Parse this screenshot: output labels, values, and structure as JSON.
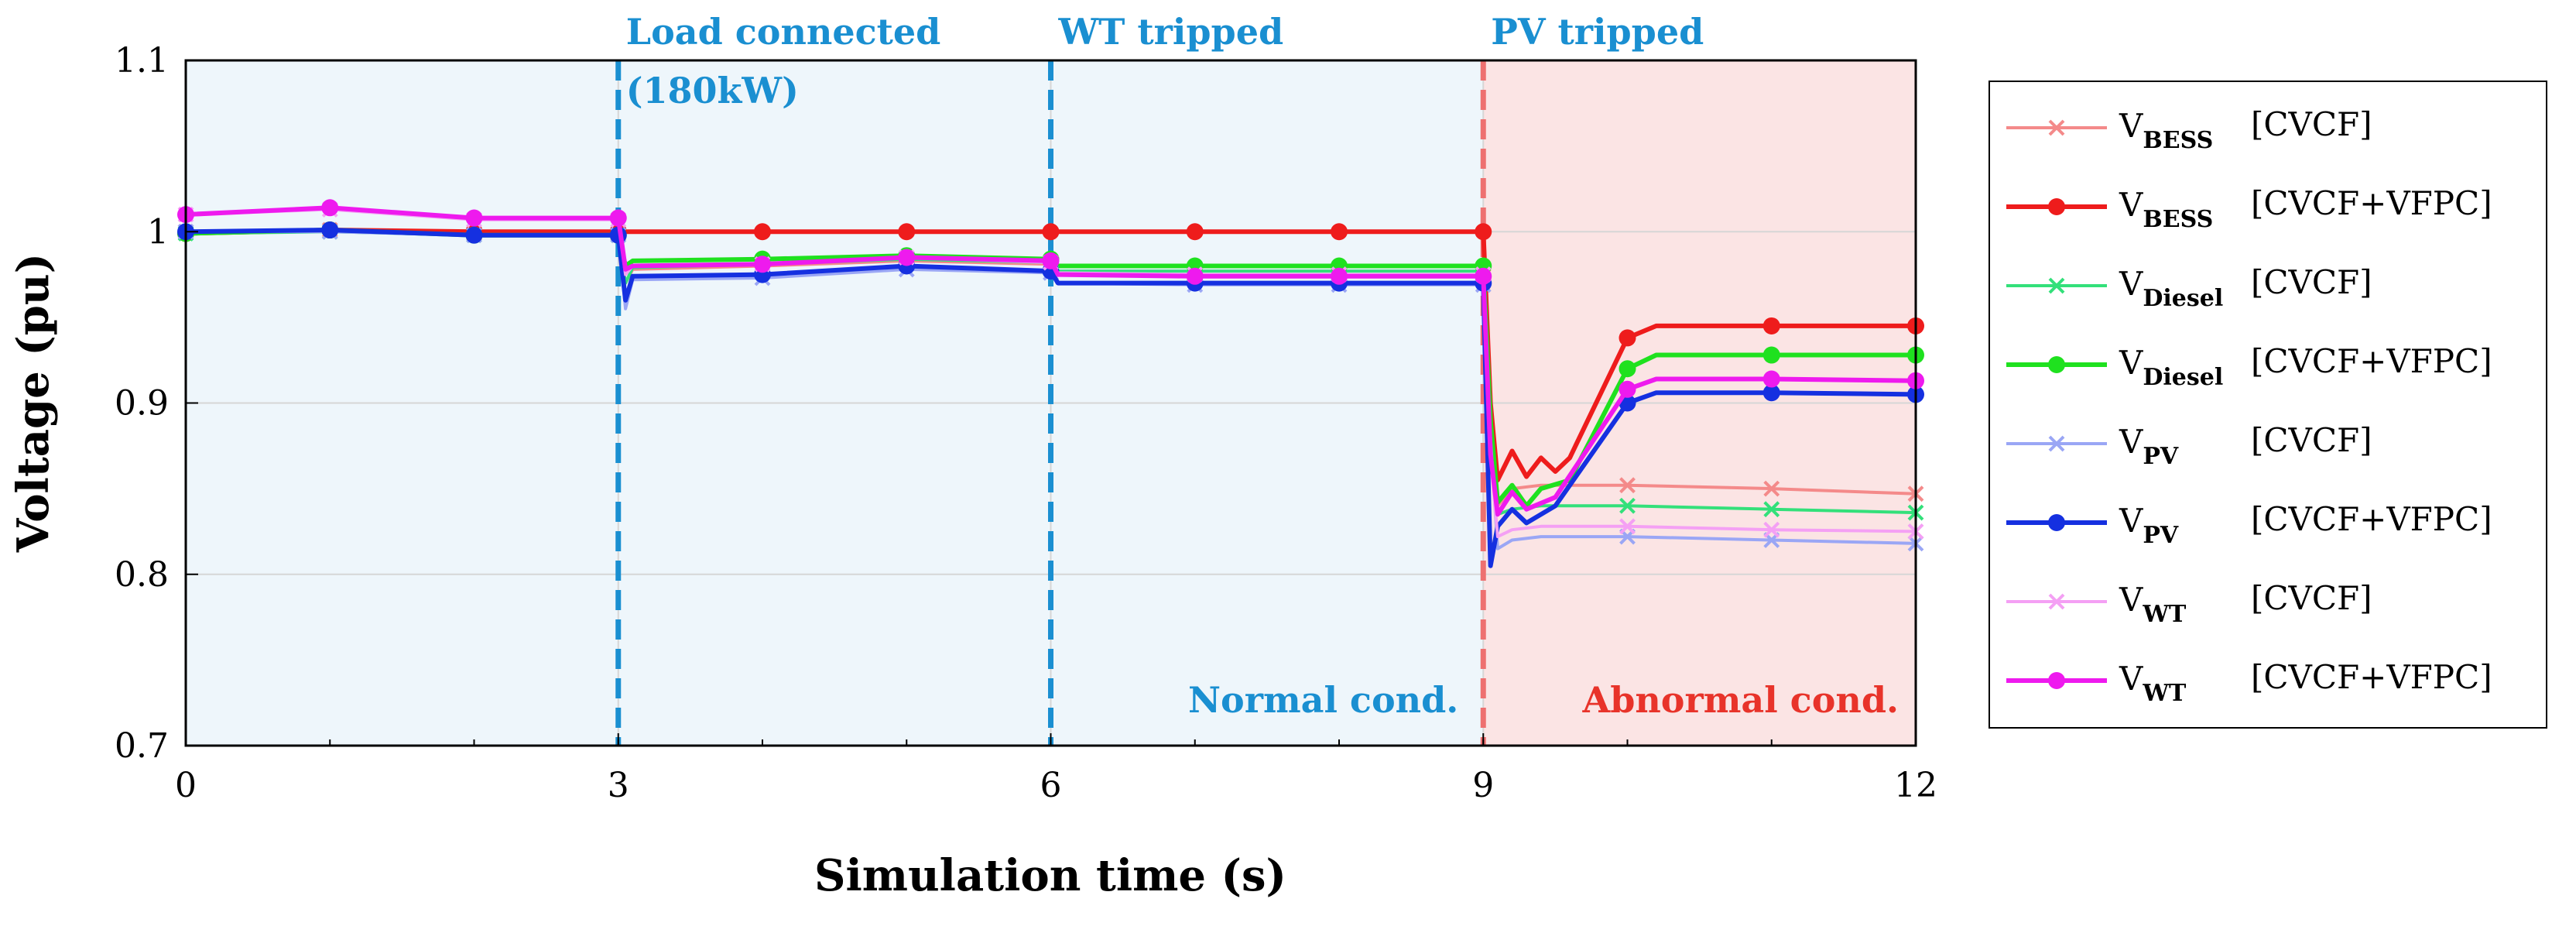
{
  "chart_data": {
    "type": "line",
    "xlabel": "Simulation time (s)",
    "ylabel": "Voltage (pu)",
    "xlim": [
      0,
      12
    ],
    "ylim": [
      0.7,
      1.1
    ],
    "xticks": [
      "0",
      "3",
      "6",
      "9",
      "12"
    ],
    "yticks": [
      "0.7",
      "0.8",
      "0.9",
      "1",
      "1.1"
    ],
    "grid": true,
    "legend_position": "right-outside",
    "regions": [
      {
        "name": "normal",
        "x_start": 0,
        "x_end": 9,
        "color": "#eef6fb",
        "label": "Normal cond.",
        "label_color": "#1a8fd1"
      },
      {
        "name": "abnormal",
        "x_start": 9,
        "x_end": 12,
        "color": "#fbe4e4",
        "label": "Abnormal cond.",
        "label_color": "#e8332a"
      }
    ],
    "events": [
      {
        "x": 3,
        "label": "Load connected",
        "label2": "(180kW)",
        "color": "#1a8fd1"
      },
      {
        "x": 6,
        "label": "WT tripped",
        "label2": "",
        "color": "#1a8fd1"
      },
      {
        "x": 9,
        "label": "PV tripped",
        "label2": "",
        "color": "#ee7070"
      }
    ],
    "series": [
      {
        "name": "V_BESS [CVCF]",
        "main": "V",
        "sub": "BESS",
        "tag": "[CVCF]",
        "color": "#f48a8a",
        "marker": "x",
        "width": 4,
        "points": [
          [
            0,
            1.0
          ],
          [
            1,
            1.001
          ],
          [
            2,
            0.999
          ],
          [
            3,
            0.999
          ],
          [
            3.05,
            0.97
          ],
          [
            3.1,
            0.978
          ],
          [
            4,
            0.98
          ],
          [
            5,
            0.983
          ],
          [
            6,
            0.981
          ],
          [
            6.05,
            0.975
          ],
          [
            7,
            0.974
          ],
          [
            8,
            0.974
          ],
          [
            9,
            0.974
          ],
          [
            9.05,
            0.9
          ],
          [
            9.1,
            0.84
          ],
          [
            9.2,
            0.85
          ],
          [
            9.4,
            0.852
          ],
          [
            10,
            0.852
          ],
          [
            11,
            0.85
          ],
          [
            12,
            0.847
          ]
        ]
      },
      {
        "name": "V_BESS [CVCF+VFPC]",
        "main": "V",
        "sub": "BESS",
        "tag": "[CVCF+VFPC]",
        "color": "#ee1c1c",
        "marker": "o",
        "width": 6,
        "points": [
          [
            0,
            0.999
          ],
          [
            1,
            1.001
          ],
          [
            2,
            1.0
          ],
          [
            3,
            1.0
          ],
          [
            3.05,
            1.0
          ],
          [
            4,
            1.0
          ],
          [
            5,
            1.0
          ],
          [
            6,
            1.0
          ],
          [
            7,
            1.0
          ],
          [
            8,
            1.0
          ],
          [
            9,
            1.0
          ],
          [
            9.05,
            0.9
          ],
          [
            9.1,
            0.855
          ],
          [
            9.2,
            0.872
          ],
          [
            9.3,
            0.857
          ],
          [
            9.4,
            0.868
          ],
          [
            9.5,
            0.86
          ],
          [
            9.6,
            0.868
          ],
          [
            10,
            0.938
          ],
          [
            10.2,
            0.945
          ],
          [
            11,
            0.945
          ],
          [
            12,
            0.945
          ]
        ]
      },
      {
        "name": "V_Diesel [CVCF]",
        "main": "V",
        "sub": "Diesel",
        "tag": "[CVCF]",
        "color": "#33e07a",
        "marker": "x",
        "width": 4,
        "points": [
          [
            0,
            0.999
          ],
          [
            1,
            1.0
          ],
          [
            2,
            0.998
          ],
          [
            3,
            0.998
          ],
          [
            3.05,
            0.97
          ],
          [
            3.1,
            0.979
          ],
          [
            4,
            0.981
          ],
          [
            5,
            0.984
          ],
          [
            6,
            0.982
          ],
          [
            6.05,
            0.977
          ],
          [
            7,
            0.977
          ],
          [
            8,
            0.977
          ],
          [
            9,
            0.977
          ],
          [
            9.05,
            0.89
          ],
          [
            9.1,
            0.835
          ],
          [
            9.2,
            0.838
          ],
          [
            9.4,
            0.84
          ],
          [
            10,
            0.84
          ],
          [
            11,
            0.838
          ],
          [
            12,
            0.836
          ]
        ]
      },
      {
        "name": "V_Diesel [CVCF+VFPC]",
        "main": "V",
        "sub": "Diesel",
        "tag": "[CVCF+VFPC]",
        "color": "#1fe11f",
        "marker": "o",
        "width": 6,
        "points": [
          [
            0,
            0.999
          ],
          [
            1,
            1.001
          ],
          [
            2,
            0.998
          ],
          [
            3,
            0.998
          ],
          [
            3.05,
            0.98
          ],
          [
            3.1,
            0.983
          ],
          [
            4,
            0.984
          ],
          [
            5,
            0.986
          ],
          [
            6,
            0.984
          ],
          [
            6.05,
            0.98
          ],
          [
            7,
            0.98
          ],
          [
            8,
            0.98
          ],
          [
            9,
            0.98
          ],
          [
            9.05,
            0.89
          ],
          [
            9.1,
            0.842
          ],
          [
            9.2,
            0.852
          ],
          [
            9.3,
            0.84
          ],
          [
            9.4,
            0.85
          ],
          [
            9.6,
            0.855
          ],
          [
            10,
            0.92
          ],
          [
            10.2,
            0.928
          ],
          [
            11,
            0.928
          ],
          [
            12,
            0.928
          ]
        ]
      },
      {
        "name": "V_PV [CVCF]",
        "main": "V",
        "sub": "PV",
        "tag": "[CVCF]",
        "color": "#9aa6f5",
        "marker": "x",
        "width": 4,
        "points": [
          [
            0,
            1.0
          ],
          [
            1,
            1.0
          ],
          [
            2,
            0.998
          ],
          [
            3,
            0.998
          ],
          [
            3.05,
            0.955
          ],
          [
            3.1,
            0.972
          ],
          [
            4,
            0.973
          ],
          [
            5,
            0.978
          ],
          [
            6,
            0.976
          ],
          [
            6.05,
            0.97
          ],
          [
            7,
            0.969
          ],
          [
            8,
            0.969
          ],
          [
            9,
            0.969
          ],
          [
            9.05,
            0.88
          ],
          [
            9.1,
            0.815
          ],
          [
            9.2,
            0.82
          ],
          [
            9.4,
            0.822
          ],
          [
            10,
            0.822
          ],
          [
            11,
            0.82
          ],
          [
            12,
            0.818
          ]
        ]
      },
      {
        "name": "V_PV [CVCF+VFPC]",
        "main": "V",
        "sub": "PV",
        "tag": "[CVCF+VFPC]",
        "color": "#1530e0",
        "marker": "o",
        "width": 6,
        "points": [
          [
            0,
            1.0
          ],
          [
            1,
            1.001
          ],
          [
            2,
            0.998
          ],
          [
            3,
            0.998
          ],
          [
            3.05,
            0.96
          ],
          [
            3.1,
            0.974
          ],
          [
            4,
            0.975
          ],
          [
            5,
            0.98
          ],
          [
            6,
            0.977
          ],
          [
            6.05,
            0.97
          ],
          [
            7,
            0.97
          ],
          [
            8,
            0.97
          ],
          [
            9,
            0.97
          ],
          [
            9.05,
            0.805
          ],
          [
            9.1,
            0.828
          ],
          [
            9.2,
            0.838
          ],
          [
            9.3,
            0.83
          ],
          [
            9.5,
            0.84
          ],
          [
            10,
            0.9
          ],
          [
            10.2,
            0.906
          ],
          [
            11,
            0.906
          ],
          [
            12,
            0.905
          ]
        ]
      },
      {
        "name": "V_WT [CVCF]",
        "main": "V",
        "sub": "WT",
        "tag": "[CVCF]",
        "color": "#f4a0f4",
        "marker": "x",
        "width": 4,
        "points": [
          [
            0,
            1.01
          ],
          [
            1,
            1.013
          ],
          [
            2,
            1.007
          ],
          [
            3,
            1.007
          ],
          [
            3.05,
            0.975
          ],
          [
            3.1,
            0.98
          ],
          [
            4,
            0.981
          ],
          [
            5,
            0.985
          ],
          [
            6,
            0.982
          ],
          [
            6.05,
            0.976
          ],
          [
            7,
            0.975
          ],
          [
            8,
            0.975
          ],
          [
            9,
            0.975
          ],
          [
            9.05,
            0.87
          ],
          [
            9.1,
            0.822
          ],
          [
            9.2,
            0.826
          ],
          [
            9.4,
            0.828
          ],
          [
            10,
            0.828
          ],
          [
            11,
            0.826
          ],
          [
            12,
            0.825
          ]
        ]
      },
      {
        "name": "V_WT [CVCF+VFPC]",
        "main": "V",
        "sub": "WT",
        "tag": "[CVCF+VFPC]",
        "color": "#ee1aee",
        "marker": "o",
        "width": 6,
        "points": [
          [
            0,
            1.01
          ],
          [
            1,
            1.014
          ],
          [
            2,
            1.008
          ],
          [
            3,
            1.008
          ],
          [
            3.05,
            0.978
          ],
          [
            3.1,
            0.98
          ],
          [
            4,
            0.981
          ],
          [
            5,
            0.985
          ],
          [
            6,
            0.983
          ],
          [
            6.05,
            0.975
          ],
          [
            7,
            0.974
          ],
          [
            8,
            0.974
          ],
          [
            9,
            0.974
          ],
          [
            9.05,
            0.87
          ],
          [
            9.1,
            0.835
          ],
          [
            9.2,
            0.848
          ],
          [
            9.3,
            0.838
          ],
          [
            9.5,
            0.845
          ],
          [
            10,
            0.908
          ],
          [
            10.2,
            0.914
          ],
          [
            11,
            0.914
          ],
          [
            12,
            0.913
          ]
        ]
      }
    ]
  }
}
